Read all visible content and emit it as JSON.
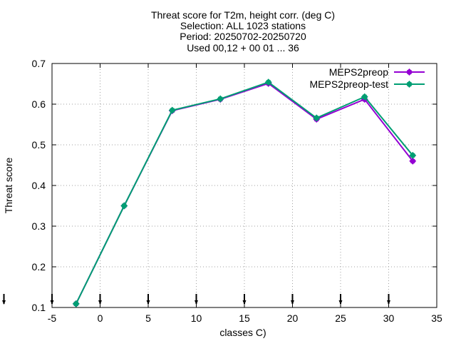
{
  "chart_data": {
    "type": "line",
    "title_lines": [
      "Threat score  for T2m, height corr. (deg C)",
      "Selection: ALL    1023 stations",
      "Period: 20250702-20250720",
      "Used 00,12 + 00 01 ... 36"
    ],
    "xlabel": "classes C)",
    "ylabel": "Threat score",
    "xlim": [
      -5,
      35
    ],
    "ylim": [
      0.1,
      0.7
    ],
    "xticks": [
      -5,
      0,
      5,
      10,
      15,
      20,
      25,
      30,
      35
    ],
    "yticks": [
      0.1,
      0.2,
      0.3,
      0.4,
      0.5,
      0.6,
      0.7
    ],
    "xtick_labels": [
      "-5",
      "0",
      "5",
      "10",
      "15",
      "20",
      "25",
      "30",
      "35"
    ],
    "ytick_labels": [
      "0.1",
      "0.2",
      "0.3",
      "0.4",
      "0.5",
      "0.6",
      "0.7"
    ],
    "grid": true,
    "legend_position": "top-right",
    "arrow_markers_x": [
      -10,
      -5,
      0,
      5,
      10,
      15,
      20,
      25,
      30
    ],
    "series": [
      {
        "name": "MEPS2preop",
        "color": "#9400d3",
        "x": [
          -2.5,
          2.5,
          7.5,
          12.5,
          17.5,
          22.5,
          27.5,
          32.5
        ],
        "y": [
          0.109,
          0.35,
          0.584,
          0.612,
          0.651,
          0.563,
          0.612,
          0.46
        ]
      },
      {
        "name": "MEPS2preop-test",
        "color": "#009e73",
        "x": [
          -2.5,
          2.5,
          7.5,
          12.5,
          17.5,
          22.5,
          27.5,
          32.5
        ],
        "y": [
          0.109,
          0.35,
          0.585,
          0.613,
          0.654,
          0.566,
          0.618,
          0.474
        ]
      }
    ]
  }
}
